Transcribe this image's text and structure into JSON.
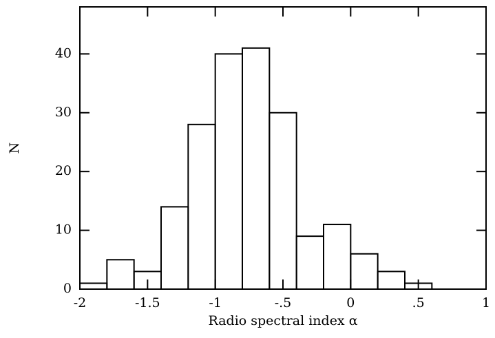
{
  "chart_data": {
    "type": "histogram",
    "xlabel": "Radio spectral index α",
    "ylabel": "N",
    "bins": [
      -2,
      -1.8,
      -1.6,
      -1.4,
      -1.2,
      -1,
      -0.8,
      -0.6,
      -0.4,
      -0.2,
      0,
      0.2,
      0.4,
      0.6
    ],
    "values": [
      1,
      5,
      3,
      14,
      28,
      40,
      41,
      30,
      9,
      11,
      6,
      3,
      1
    ],
    "color": "#000000",
    "xlim": [
      -2,
      1
    ],
    "ylim": [
      0,
      48
    ],
    "xticks": [
      -2,
      -1.5,
      -1,
      {
        "value": -0.5,
        "label": "-.5"
      },
      0,
      {
        "value": 0.5,
        "label": ".5"
      },
      1
    ],
    "yticks": [
      0,
      10,
      20,
      30,
      40
    ]
  }
}
